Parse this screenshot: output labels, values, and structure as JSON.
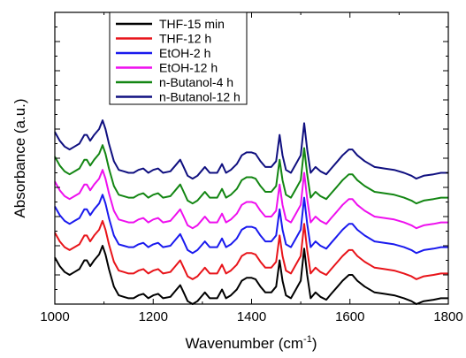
{
  "chart_data": {
    "type": "line",
    "xlabel_main": "Wavenumber (cm",
    "xlabel_sup": "-1",
    "xlabel_tail": ")",
    "ylabel": "Absorbance (a.u.)",
    "xlim": [
      1000,
      1800
    ],
    "xticks": [
      1000,
      1200,
      1400,
      1600,
      1800
    ],
    "ylim": [
      0,
      1
    ],
    "legend_position": "top-center",
    "series": [
      {
        "name": "THF-15 min",
        "color": "#000000",
        "offset": 0.0
      },
      {
        "name": "THF-12 h",
        "color": "#e8141a",
        "offset": 0.085
      },
      {
        "name": "EtOH-2 h",
        "color": "#1a1aee",
        "offset": 0.175
      },
      {
        "name": "EtOH-12 h",
        "color": "#ee10ee",
        "offset": 0.26
      },
      {
        "name": "n-Butanol-4 h",
        "color": "#138613",
        "offset": 0.345
      },
      {
        "name": "n-Butanol-12 h",
        "color": "#101080",
        "offset": 0.43
      }
    ],
    "profile": [
      [
        1000,
        0.16
      ],
      [
        1010,
        0.13
      ],
      [
        1020,
        0.11
      ],
      [
        1030,
        0.1
      ],
      [
        1040,
        0.11
      ],
      [
        1050,
        0.12
      ],
      [
        1060,
        0.15
      ],
      [
        1065,
        0.15
      ],
      [
        1072,
        0.13
      ],
      [
        1080,
        0.15
      ],
      [
        1090,
        0.17
      ],
      [
        1097,
        0.2
      ],
      [
        1103,
        0.17
      ],
      [
        1110,
        0.12
      ],
      [
        1120,
        0.06
      ],
      [
        1130,
        0.03
      ],
      [
        1140,
        0.025
      ],
      [
        1150,
        0.02
      ],
      [
        1160,
        0.02
      ],
      [
        1170,
        0.03
      ],
      [
        1180,
        0.035
      ],
      [
        1190,
        0.02
      ],
      [
        1200,
        0.03
      ],
      [
        1210,
        0.035
      ],
      [
        1220,
        0.02
      ],
      [
        1235,
        0.025
      ],
      [
        1245,
        0.045
      ],
      [
        1255,
        0.065
      ],
      [
        1262,
        0.04
      ],
      [
        1270,
        0.01
      ],
      [
        1280,
        0.0
      ],
      [
        1290,
        0.01
      ],
      [
        1300,
        0.03
      ],
      [
        1305,
        0.04
      ],
      [
        1315,
        0.02
      ],
      [
        1330,
        0.02
      ],
      [
        1340,
        0.05
      ],
      [
        1348,
        0.02
      ],
      [
        1358,
        0.03
      ],
      [
        1370,
        0.05
      ],
      [
        1380,
        0.08
      ],
      [
        1390,
        0.09
      ],
      [
        1400,
        0.09
      ],
      [
        1408,
        0.085
      ],
      [
        1418,
        0.06
      ],
      [
        1428,
        0.04
      ],
      [
        1440,
        0.04
      ],
      [
        1450,
        0.06
      ],
      [
        1457,
        0.15
      ],
      [
        1463,
        0.08
      ],
      [
        1470,
        0.03
      ],
      [
        1480,
        0.02
      ],
      [
        1490,
        0.05
      ],
      [
        1500,
        0.08
      ],
      [
        1507,
        0.19
      ],
      [
        1513,
        0.1
      ],
      [
        1520,
        0.02
      ],
      [
        1530,
        0.04
      ],
      [
        1540,
        0.025
      ],
      [
        1552,
        0.015
      ],
      [
        1562,
        0.035
      ],
      [
        1575,
        0.06
      ],
      [
        1585,
        0.08
      ],
      [
        1598,
        0.1
      ],
      [
        1605,
        0.1
      ],
      [
        1615,
        0.08
      ],
      [
        1630,
        0.06
      ],
      [
        1650,
        0.04
      ],
      [
        1670,
        0.035
      ],
      [
        1690,
        0.03
      ],
      [
        1710,
        0.02
      ],
      [
        1725,
        0.01
      ],
      [
        1735,
        0.0
      ],
      [
        1750,
        0.01
      ],
      [
        1770,
        0.015
      ],
      [
        1785,
        0.02
      ],
      [
        1800,
        0.02
      ]
    ]
  }
}
